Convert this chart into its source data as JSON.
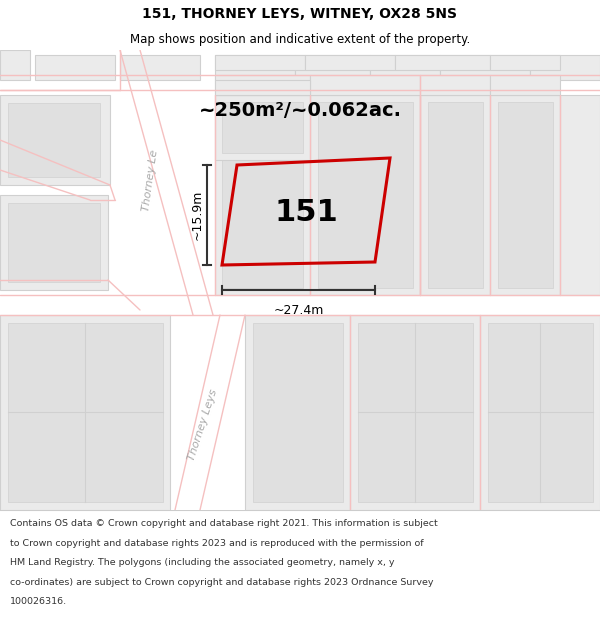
{
  "title": "151, THORNEY LEYS, WITNEY, OX28 5NS",
  "subtitle": "Map shows position and indicative extent of the property.",
  "footer_lines": [
    "Contains OS data © Crown copyright and database right 2021. This information is subject",
    "to Crown copyright and database rights 2023 and is reproduced with the permission of",
    "HM Land Registry. The polygons (including the associated geometry, namely x, y",
    "co-ordinates) are subject to Crown copyright and database rights 2023 Ordnance Survey",
    "100026316."
  ],
  "area_label": "~250m²/~0.062ac.",
  "width_label": "~27.4m",
  "height_label": "~15.9m",
  "property_number": "151",
  "map_bg": "#ffffff",
  "road_line_color": "#f5c0c0",
  "block_fill": "#ebebeb",
  "block_edge": "#d0d0d0",
  "highlight_color": "#cc0000",
  "dim_color": "#333333",
  "road_label_color": "#aaaaaa",
  "text_color": "#000000",
  "footer_color": "#333333",
  "title_fontsize": 10,
  "subtitle_fontsize": 8.5,
  "footer_fontsize": 6.8,
  "area_fontsize": 14,
  "property_num_fontsize": 22,
  "dim_fontsize": 9
}
